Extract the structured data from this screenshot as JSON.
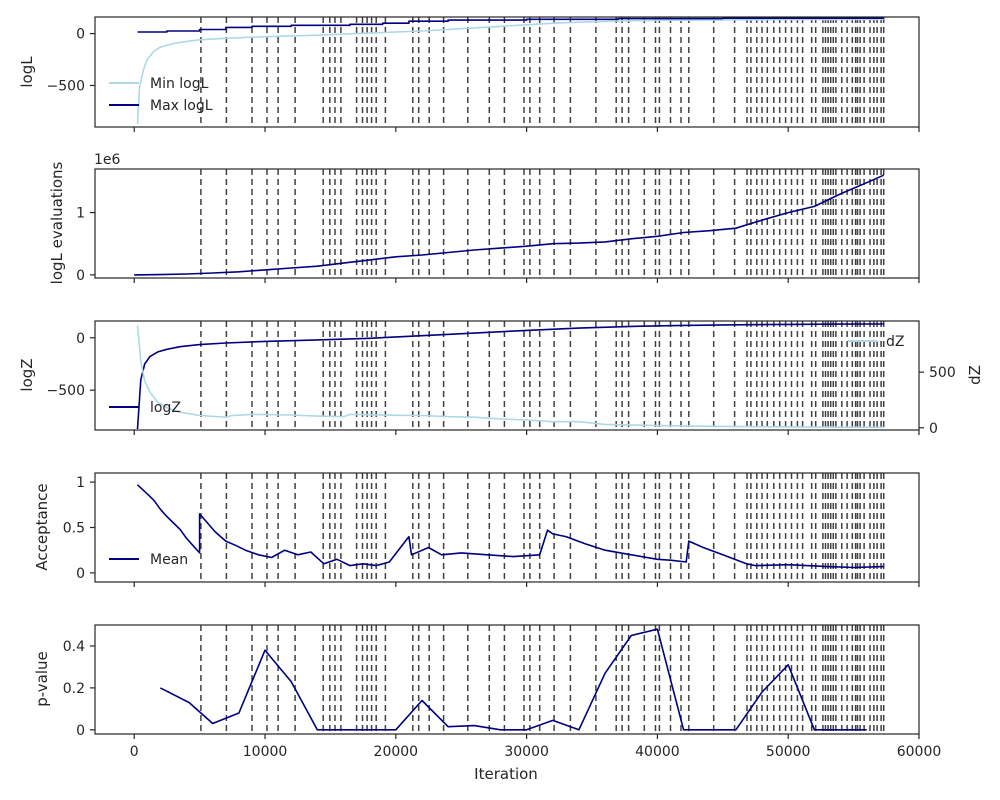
{
  "chart_data": [
    {
      "type": "line",
      "ylabel": "logL",
      "xlim": [
        -3000,
        60000
      ],
      "ylim": [
        -900,
        160
      ],
      "yticks": [
        0,
        -500
      ],
      "legend": {
        "placement": "lower-left"
      },
      "series": [
        {
          "name": "Min logL",
          "color": "#add8e6",
          "x": [
            250,
            400,
            700,
            1000,
            1500,
            2000,
            3000,
            4000,
            5000,
            7000,
            9000,
            10000,
            12000,
            14000,
            16000,
            18000,
            20000,
            22000,
            24000,
            26000,
            28000,
            30000,
            32000,
            34000,
            36000,
            38000,
            40000,
            45000,
            50000,
            55000,
            57300
          ],
          "y": [
            -870,
            -520,
            -350,
            -250,
            -170,
            -130,
            -95,
            -75,
            -60,
            -45,
            -35,
            -30,
            -22,
            -15,
            -5,
            5,
            15,
            25,
            40,
            55,
            70,
            85,
            100,
            110,
            118,
            124,
            128,
            132,
            135,
            137,
            138
          ]
        },
        {
          "name": "Max logL",
          "color": "#000080",
          "x": [
            250,
            2500,
            2500,
            5000,
            5000,
            7000,
            7000,
            9000,
            9000,
            12000,
            12000,
            16500,
            16500,
            19000,
            19000,
            21000,
            21000,
            24000,
            24000,
            30000,
            30000,
            37000,
            37000,
            45000,
            45000,
            57300
          ],
          "y": [
            15,
            15,
            25,
            25,
            40,
            40,
            60,
            60,
            70,
            70,
            80,
            80,
            90,
            90,
            100,
            100,
            120,
            120,
            130,
            130,
            138,
            138,
            145,
            145,
            148,
            148
          ]
        }
      ]
    },
    {
      "type": "line",
      "ylabel": "logL evaluations",
      "offset_text": "1e6",
      "xlim": [
        -3000,
        60000
      ],
      "ylim": [
        -0.05,
        1.7
      ],
      "yticks": [
        0,
        1
      ],
      "series": [
        {
          "color": "#000080",
          "x": [
            0,
            2000,
            4000,
            6000,
            8000,
            10000,
            12000,
            14000,
            16000,
            18000,
            20000,
            22000,
            24000,
            26000,
            28000,
            30000,
            32000,
            34000,
            36000,
            38000,
            40000,
            42000,
            44000,
            46000,
            48000,
            50000,
            52000,
            54000,
            56000,
            57300
          ],
          "y": [
            0.0,
            0.005,
            0.015,
            0.03,
            0.05,
            0.08,
            0.11,
            0.14,
            0.19,
            0.24,
            0.29,
            0.32,
            0.36,
            0.4,
            0.43,
            0.46,
            0.5,
            0.51,
            0.53,
            0.58,
            0.62,
            0.68,
            0.71,
            0.75,
            0.88,
            1.0,
            1.1,
            1.3,
            1.48,
            1.6
          ]
        }
      ]
    },
    {
      "type": "line",
      "ylabel": "logZ",
      "y2label": "dZ",
      "xlim": [
        -3000,
        60000
      ],
      "ylim": [
        -880,
        160
      ],
      "yticks": [
        0,
        -500
      ],
      "y2lim": [
        -20,
        960
      ],
      "y2ticks": [
        0,
        500
      ],
      "legend": {
        "placement": "split"
      },
      "series": [
        {
          "name": "logZ",
          "color": "#000080",
          "axis": "left",
          "x": [
            250,
            500,
            800,
            1200,
            1800,
            2500,
            3500,
            5000,
            7000,
            10000,
            14000,
            18000,
            22000,
            26000,
            30000,
            34000,
            38000,
            42000,
            46000,
            50000,
            54000,
            57300
          ],
          "y": [
            -870,
            -400,
            -250,
            -180,
            -135,
            -110,
            -85,
            -65,
            -50,
            -35,
            -20,
            -5,
            20,
            45,
            70,
            92,
            108,
            118,
            124,
            128,
            130,
            131
          ]
        },
        {
          "name": "dZ",
          "color": "#add8e6",
          "axis": "right",
          "x": [
            250,
            500,
            800,
            1200,
            1800,
            2500,
            3500,
            5000,
            7000,
            7500,
            9000,
            12000,
            14000,
            16000,
            16500,
            18000,
            20000,
            22000,
            24000,
            26000,
            28000,
            30000,
            32000,
            34000,
            36000,
            40000,
            45000,
            50000,
            55000,
            57300
          ],
          "y": [
            920,
            600,
            420,
            320,
            230,
            180,
            140,
            110,
            95,
            110,
            120,
            115,
            105,
            100,
            120,
            118,
            112,
            110,
            100,
            95,
            80,
            70,
            55,
            55,
            30,
            20,
            12,
            8,
            5,
            4
          ]
        }
      ]
    },
    {
      "type": "line",
      "ylabel": "Acceptance",
      "xlim": [
        -3000,
        60000
      ],
      "ylim": [
        -0.1,
        1.1
      ],
      "yticks": [
        0.0,
        0.5,
        1.0
      ],
      "legend": {
        "placement": "lower-left"
      },
      "series": [
        {
          "name": "Mean",
          "color": "#000080",
          "x": [
            250,
            1000,
            1500,
            2000,
            2500,
            3000,
            3500,
            4000,
            4500,
            5000,
            5000,
            5600,
            6200,
            7000,
            7800,
            8500,
            9500,
            10500,
            11500,
            12500,
            13500,
            14500,
            15500,
            16500,
            17500,
            18500,
            19500,
            21000,
            21200,
            22500,
            23500,
            25000,
            27000,
            29000,
            31000,
            31600,
            32000,
            33000,
            34500,
            36000,
            38000,
            40000,
            41000,
            42200,
            42400,
            43500,
            45000,
            46800,
            47500,
            50000,
            53000,
            55000,
            57300
          ],
          "y": [
            0.97,
            0.87,
            0.8,
            0.7,
            0.62,
            0.55,
            0.48,
            0.38,
            0.3,
            0.22,
            0.65,
            0.55,
            0.45,
            0.35,
            0.3,
            0.25,
            0.2,
            0.17,
            0.25,
            0.2,
            0.23,
            0.1,
            0.15,
            0.08,
            0.1,
            0.08,
            0.12,
            0.4,
            0.2,
            0.28,
            0.2,
            0.22,
            0.2,
            0.18,
            0.2,
            0.47,
            0.43,
            0.4,
            0.32,
            0.25,
            0.2,
            0.15,
            0.14,
            0.12,
            0.35,
            0.28,
            0.2,
            0.1,
            0.08,
            0.09,
            0.07,
            0.06,
            0.07
          ]
        }
      ]
    },
    {
      "type": "line",
      "ylabel": "p-value",
      "xlabel": "Iteration",
      "xlim": [
        -3000,
        60000
      ],
      "ylim": [
        -0.02,
        0.5
      ],
      "yticks": [
        0.0,
        0.2,
        0.4
      ],
      "xticks": [
        0,
        10000,
        20000,
        30000,
        40000,
        50000,
        60000
      ],
      "series": [
        {
          "color": "#000080",
          "x": [
            2000,
            4200,
            6000,
            8000,
            10000,
            12000,
            14000,
            16000,
            18000,
            20000,
            22000,
            24000,
            26000,
            28000,
            30000,
            32000,
            34000,
            36000,
            38000,
            40000,
            42000,
            44000,
            46000,
            48000,
            50000,
            52000,
            54000,
            56000
          ],
          "y": [
            0.2,
            0.13,
            0.03,
            0.08,
            0.38,
            0.23,
            0.0,
            0.0,
            0.0,
            0.0,
            0.14,
            0.015,
            0.02,
            0.0,
            0.0,
            0.045,
            0.0,
            0.27,
            0.45,
            0.48,
            0.0,
            0.0,
            0.0,
            0.18,
            0.31,
            0.0,
            0.0,
            0.0
          ]
        }
      ]
    }
  ],
  "vlines": [
    5100,
    7050,
    9000,
    10150,
    11000,
    12300,
    14450,
    14950,
    15350,
    15800,
    17000,
    17450,
    17800,
    18150,
    18500,
    19200,
    21300,
    21750,
    22550,
    23650,
    25500,
    27150,
    28300,
    29800,
    30250,
    31000,
    32100,
    33350,
    35300,
    36850,
    37300,
    37800,
    39000,
    39850,
    40150,
    41000,
    41800,
    42400,
    44300,
    45900,
    46850,
    47150,
    47600,
    48000,
    48400,
    48900,
    49350,
    49800,
    50250,
    50700,
    51100,
    51800,
    52100,
    52650,
    52850,
    53050,
    53250,
    53450,
    53650,
    54100,
    54500,
    54900,
    55150,
    55300,
    55500,
    55800,
    56250,
    56550,
    56800,
    57100,
    57300
  ],
  "colors": {
    "line": "#000080",
    "light": "#add8e6",
    "vline": "#404040",
    "axis": "#262626"
  }
}
